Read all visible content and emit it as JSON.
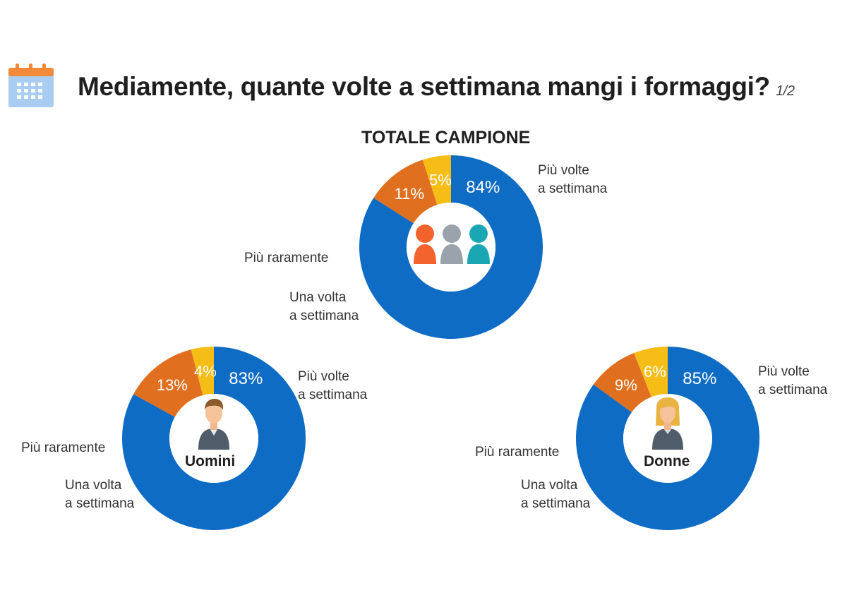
{
  "header": {
    "title": "Mediamente, quante volte a settimana mangi i formaggi?",
    "page": "1/2",
    "icon": "calendar-icon"
  },
  "colors": {
    "piu_volte": "#0f6cc4",
    "una_volta": "#e0701f",
    "piu_raramente": "#f6bd16"
  },
  "chart_data": [
    {
      "type": "pie",
      "title": "TOTALE CAMPIONE",
      "center_icon": "people-group-icon",
      "slices": [
        {
          "label": "Più volte a settimana",
          "value": 84,
          "display": "84%"
        },
        {
          "label": "Una volta a settimana",
          "value": 11,
          "display": "11%"
        },
        {
          "label": "Più raramente",
          "value": 5,
          "display": "5%"
        }
      ]
    },
    {
      "type": "pie",
      "title": "Uomini",
      "center_icon": "man-avatar-icon",
      "slices": [
        {
          "label": "Più volte a settimana",
          "value": 83,
          "display": "83%"
        },
        {
          "label": "Una volta a settimana",
          "value": 13,
          "display": "13%"
        },
        {
          "label": "Più raramente",
          "value": 4,
          "display": "4%"
        }
      ]
    },
    {
      "type": "pie",
      "title": "Donne",
      "center_icon": "woman-avatar-icon",
      "slices": [
        {
          "label": "Più volte a settimana",
          "value": 85,
          "display": "85%"
        },
        {
          "label": "Una volta a settimana",
          "value": 9,
          "display": "9%"
        },
        {
          "label": "Più raramente",
          "value": 6,
          "display": "6%"
        }
      ]
    }
  ],
  "labels": {
    "piu_volte_line1": "Più volte",
    "piu_volte_line2": "a settimana",
    "una_volta_line1": "Una volta",
    "una_volta_line2": "a settimana",
    "piu_raramente": "Più raramente"
  }
}
